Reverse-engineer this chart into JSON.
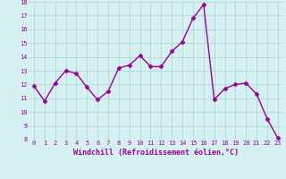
{
  "x": [
    0,
    1,
    2,
    3,
    4,
    5,
    6,
    7,
    8,
    9,
    10,
    11,
    12,
    13,
    14,
    15,
    16,
    17,
    18,
    19,
    20,
    21,
    22,
    23
  ],
  "y": [
    11.9,
    10.8,
    12.1,
    13.0,
    12.8,
    11.8,
    10.9,
    11.5,
    13.2,
    13.4,
    14.1,
    13.3,
    13.3,
    14.4,
    15.1,
    16.8,
    17.8,
    10.9,
    11.7,
    12.0,
    12.1,
    11.3,
    9.5,
    8.1
  ],
  "line_color": "#990099",
  "marker": "D",
  "marker_size": 2.5,
  "bg_color": "#d4f0f0",
  "grid_color": "#b0d8d8",
  "xlabel": "Windchill (Refroidissement éolien,°C)",
  "xlabel_color": "#990099",
  "tick_color": "#990099",
  "ylim": [
    8,
    18
  ],
  "yticks": [
    8,
    9,
    10,
    11,
    12,
    13,
    14,
    15,
    16,
    17,
    18
  ],
  "xticks": [
    0,
    1,
    2,
    3,
    4,
    5,
    6,
    7,
    8,
    9,
    10,
    11,
    12,
    13,
    14,
    15,
    16,
    17,
    18,
    19,
    20,
    21,
    22,
    23
  ],
  "line_width": 1.0,
  "tick_fontsize": 5.0,
  "xlabel_fontsize": 6.0
}
